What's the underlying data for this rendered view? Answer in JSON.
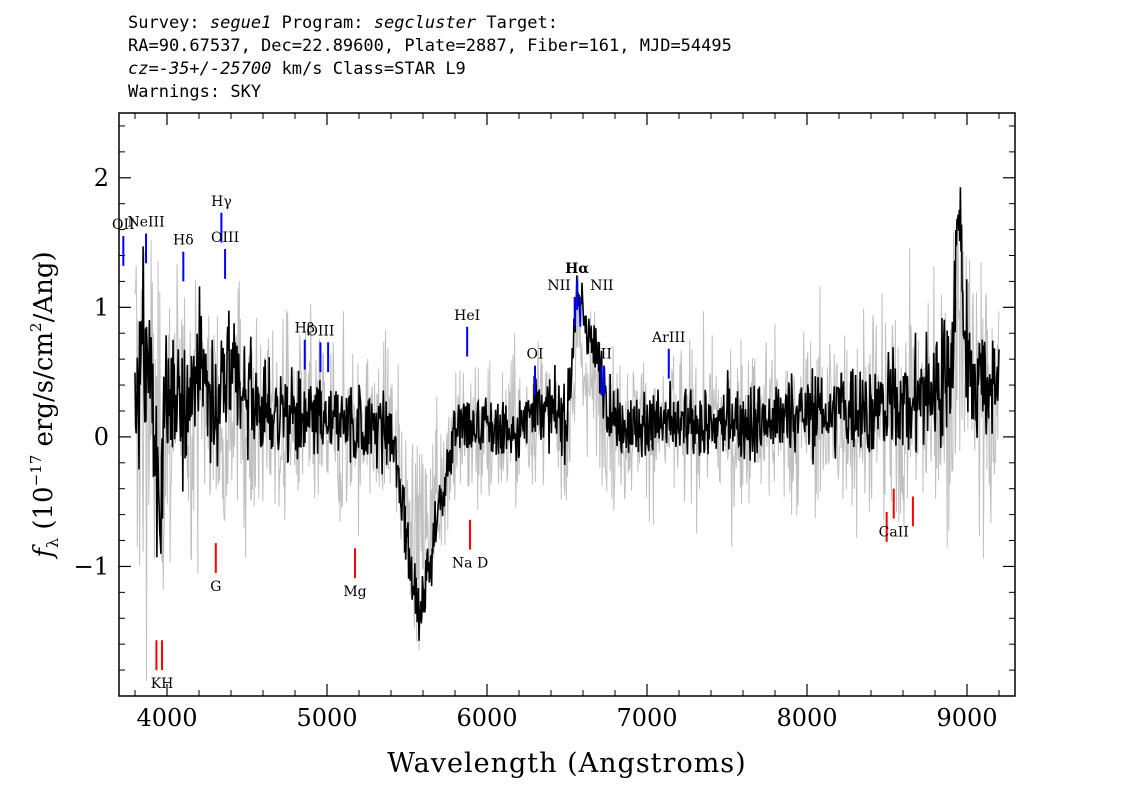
{
  "header": {
    "survey_label": "Survey:",
    "survey": "segue1",
    "program_label": "Program:",
    "program": "segcluster",
    "target_label": "Target:",
    "line2": "RA=90.67537, Dec=22.89600, Plate=2887, Fiber=161, MJD=54495",
    "cz_label": "cz=",
    "cz_value": "-35+/-25700",
    "cz_unit_class": "km/s Class=STAR L9",
    "warnings": "Warnings: SKY"
  },
  "colors": {
    "flux": "#000000",
    "error": "#c0c0c0",
    "emission": "#0000ff",
    "absorption": "#ff0000"
  },
  "chart_data": {
    "type": "line",
    "xlabel": "Wavelength (Angstroms)",
    "ylabel": "f_λ (10^-17 erg/s/cm^2/Ang)",
    "xlim": [
      3700,
      9300
    ],
    "ylim": [
      -2.0,
      2.5
    ],
    "xticks": [
      4000,
      5000,
      6000,
      7000,
      8000,
      9000
    ],
    "yticks": [
      -1,
      0,
      1,
      2
    ],
    "series": [
      {
        "role": "flux",
        "x": [
          3800,
          3850,
          3900,
          3950,
          4000,
          4100,
          4200,
          4300,
          4400,
          4500,
          4600,
          4800,
          5000,
          5200,
          5400,
          5577,
          5800,
          6000,
          6200,
          6300,
          6500,
          6563,
          6800,
          7000,
          7200,
          7500,
          7800,
          8000,
          8200,
          8500,
          8700,
          8900,
          8950,
          9000,
          9100,
          9200
        ],
        "y": [
          0.2,
          0.6,
          0.4,
          -0.5,
          0.3,
          0.2,
          0.6,
          0.2,
          0.5,
          0.3,
          0.2,
          0.15,
          0.1,
          0.1,
          0.05,
          -1.4,
          0.08,
          0.05,
          0.05,
          0.3,
          0.1,
          1.1,
          0.1,
          0.1,
          0.1,
          0.1,
          0.15,
          0.2,
          0.2,
          0.25,
          0.3,
          0.5,
          1.8,
          0.6,
          0.4,
          0.4
        ]
      },
      {
        "role": "error",
        "x": [
          3800,
          4000,
          4500,
          5000,
          5500,
          6000,
          6500,
          7000,
          7500,
          8000,
          8500,
          9000,
          9200
        ],
        "y": [
          1.3,
          0.8,
          0.6,
          0.5,
          0.45,
          0.4,
          0.4,
          0.4,
          0.45,
          0.5,
          0.6,
          0.8,
          0.7
        ]
      }
    ],
    "emission_lines": [
      {
        "label": "OII",
        "wavelength": 3727,
        "y_bottom": 1.32,
        "y_top": 1.55
      },
      {
        "label": "NeIII",
        "wavelength": 3869,
        "y_bottom": 1.34,
        "y_top": 1.57
      },
      {
        "label": "Hδ",
        "wavelength": 4102,
        "y_bottom": 1.2,
        "y_top": 1.43
      },
      {
        "label": "Hγ",
        "wavelength": 4340,
        "y_bottom": 1.5,
        "y_top": 1.73
      },
      {
        "label": "OIII",
        "wavelength": 4363,
        "y_bottom": 1.22,
        "y_top": 1.45
      },
      {
        "label": "Hβ",
        "wavelength": 4861,
        "y_bottom": 0.52,
        "y_top": 0.75
      },
      {
        "label": "OIII",
        "wavelength": 4959,
        "y_bottom": 0.5,
        "y_top": 0.73
      },
      {
        "label": "",
        "wavelength": 5007,
        "y_bottom": 0.5,
        "y_top": 0.73
      },
      {
        "label": "HeI",
        "wavelength": 5876,
        "y_bottom": 0.62,
        "y_top": 0.85
      },
      {
        "label": "OI",
        "wavelength": 6300,
        "y_bottom": 0.32,
        "y_top": 0.55
      },
      {
        "label": "NII",
        "wavelength": 6548,
        "y_bottom": 0.85,
        "y_top": 1.08
      },
      {
        "label": "Hα",
        "wavelength": 6563,
        "y_bottom": 0.98,
        "y_top": 1.21
      },
      {
        "label": "NII",
        "wavelength": 6583,
        "y_bottom": 0.85,
        "y_top": 1.08
      },
      {
        "label": "SII",
        "wavelength": 6716,
        "y_bottom": 0.32,
        "y_top": 0.55
      },
      {
        "label": "",
        "wavelength": 6731,
        "y_bottom": 0.32,
        "y_top": 0.55
      },
      {
        "label": "ArIII",
        "wavelength": 7136,
        "y_bottom": 0.45,
        "y_top": 0.68
      }
    ],
    "absorption_lines": [
      {
        "label": "",
        "wavelength": 3934,
        "y_top": -1.57,
        "y_bottom": -1.8
      },
      {
        "label": "KH",
        "wavelength": 3969,
        "y_top": -1.57,
        "y_bottom": -1.8
      },
      {
        "label": "G",
        "wavelength": 4305,
        "y_top": -0.82,
        "y_bottom": -1.05
      },
      {
        "label": "Mg",
        "wavelength": 5175,
        "y_top": -0.86,
        "y_bottom": -1.09
      },
      {
        "label": "Na D",
        "wavelength": 5894,
        "y_top": -0.64,
        "y_bottom": -0.87
      },
      {
        "label": "",
        "wavelength": 8498,
        "y_top": -0.58,
        "y_bottom": -0.81
      },
      {
        "label": "CaII",
        "wavelength": 8542,
        "y_top": -0.4,
        "y_bottom": -0.63
      },
      {
        "label": "",
        "wavelength": 8662,
        "y_top": -0.46,
        "y_bottom": -0.69
      }
    ]
  }
}
